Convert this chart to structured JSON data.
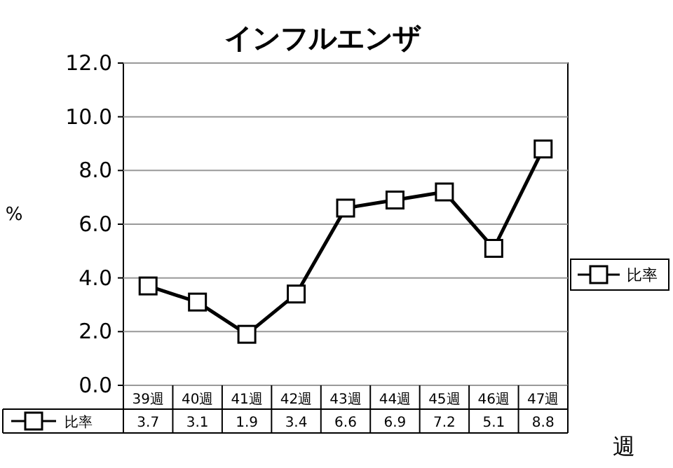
{
  "chart_data": {
    "type": "line",
    "title": "インフルエンザ",
    "ylabel": "%",
    "xlabel": "週",
    "categories": [
      "39週",
      "40週",
      "41週",
      "42週",
      "43週",
      "44週",
      "45週",
      "46週",
      "47週"
    ],
    "series": [
      {
        "name": "比率",
        "color": "#000000",
        "values": [
          3.7,
          3.1,
          1.9,
          3.4,
          6.6,
          6.9,
          7.2,
          5.1,
          8.8
        ]
      }
    ],
    "ylim": [
      0,
      12
    ],
    "yticks": [
      {
        "value": 0,
        "label": "0.0"
      },
      {
        "value": 2,
        "label": "2.0"
      },
      {
        "value": 4,
        "label": "4.0"
      },
      {
        "value": 6,
        "label": "6.0"
      },
      {
        "value": 8,
        "label": "8.0"
      },
      {
        "value": 10,
        "label": "10.0"
      },
      {
        "value": 12,
        "label": "12.0"
      }
    ],
    "grid": "y",
    "legend": "right",
    "marker": "square",
    "line_style": "solid",
    "data_labels": true
  }
}
